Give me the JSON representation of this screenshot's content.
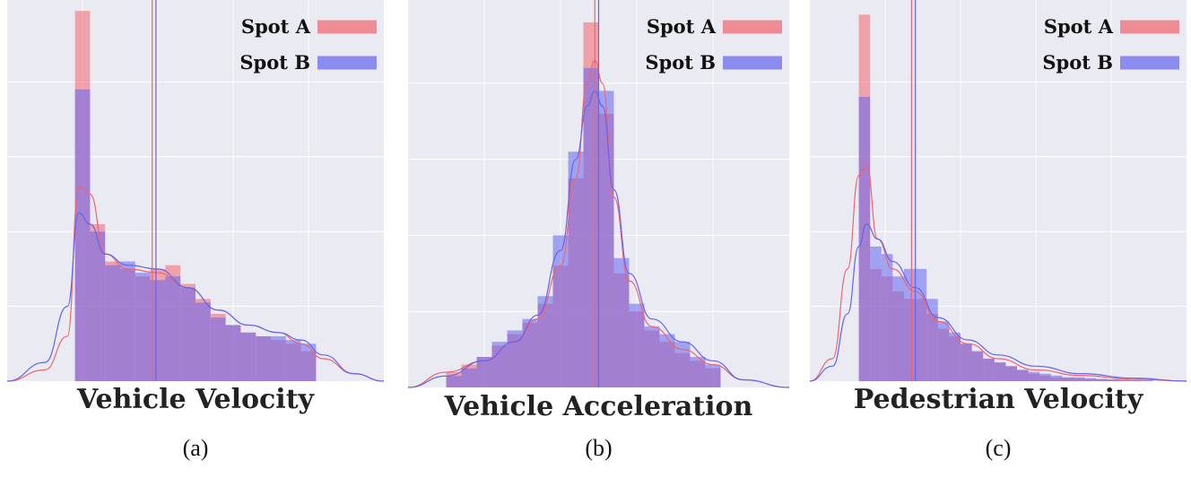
{
  "colors": {
    "spot_a": "#f0646e",
    "spot_b": "#6464f0",
    "background": "#eaeaf2",
    "grid": "#ffffff"
  },
  "panels": [
    {
      "title": "Vehicle Velocity",
      "sublabel": "(a)"
    },
    {
      "title": "Vehicle Acceleration",
      "sublabel": "(b)"
    },
    {
      "title": "Pedestrian Velocity",
      "sublabel": "(c)"
    }
  ],
  "chart_data": [
    {
      "type": "bar",
      "title": "Vehicle Velocity",
      "xlabel": "",
      "ylabel": "",
      "xlim": [
        0,
        1
      ],
      "ylim": [
        0,
        1
      ],
      "grid": true,
      "legend": "top-right",
      "overlay_density": true,
      "series": [
        {
          "name": "Spot A",
          "bin_edges": [
            0.18,
            0.22,
            0.26,
            0.3,
            0.34,
            0.38,
            0.42,
            0.46,
            0.5,
            0.54,
            0.58,
            0.62,
            0.66,
            0.7,
            0.74,
            0.78,
            0.82
          ],
          "values": [
            0.99,
            0.42,
            0.32,
            0.3,
            0.28,
            0.3,
            0.31,
            0.26,
            0.22,
            0.18,
            0.15,
            0.13,
            0.12,
            0.11,
            0.1,
            0.08
          ],
          "mean_marker": 0.385,
          "density_x": [
            0.0,
            0.1,
            0.16,
            0.19,
            0.22,
            0.26,
            0.32,
            0.4,
            0.48,
            0.56,
            0.64,
            0.72,
            0.78,
            0.84,
            0.92,
            1.0
          ],
          "density_y": [
            0.0,
            0.03,
            0.12,
            0.52,
            0.5,
            0.34,
            0.3,
            0.29,
            0.25,
            0.19,
            0.15,
            0.13,
            0.1,
            0.06,
            0.02,
            0.0
          ]
        },
        {
          "name": "Spot B",
          "bin_edges": [
            0.18,
            0.22,
            0.26,
            0.3,
            0.34,
            0.38,
            0.42,
            0.46,
            0.5,
            0.54,
            0.58,
            0.62,
            0.66,
            0.7,
            0.74,
            0.78,
            0.82
          ],
          "values": [
            0.78,
            0.4,
            0.31,
            0.32,
            0.29,
            0.27,
            0.28,
            0.25,
            0.21,
            0.17,
            0.15,
            0.13,
            0.12,
            0.12,
            0.11,
            0.1
          ],
          "mean_marker": 0.395,
          "density_x": [
            0.0,
            0.1,
            0.16,
            0.19,
            0.22,
            0.26,
            0.32,
            0.4,
            0.48,
            0.56,
            0.64,
            0.72,
            0.78,
            0.84,
            0.92,
            1.0
          ],
          "density_y": [
            0.0,
            0.05,
            0.2,
            0.45,
            0.42,
            0.34,
            0.31,
            0.3,
            0.25,
            0.19,
            0.15,
            0.13,
            0.11,
            0.07,
            0.02,
            0.0
          ]
        }
      ]
    },
    {
      "type": "bar",
      "title": "Vehicle Acceleration",
      "xlabel": "",
      "ylabel": "",
      "xlim": [
        0,
        1
      ],
      "ylim": [
        0,
        1
      ],
      "grid": true,
      "legend": "top-right",
      "overlay_density": true,
      "series": [
        {
          "name": "Spot A",
          "bin_edges": [
            0.1,
            0.14,
            0.18,
            0.22,
            0.26,
            0.3,
            0.34,
            0.38,
            0.42,
            0.46,
            0.5,
            0.54,
            0.58,
            0.62,
            0.66,
            0.7,
            0.74,
            0.78,
            0.82
          ],
          "values": [
            0.04,
            0.06,
            0.08,
            0.11,
            0.14,
            0.17,
            0.22,
            0.32,
            0.55,
            0.96,
            0.72,
            0.3,
            0.2,
            0.15,
            0.12,
            0.09,
            0.07,
            0.05
          ],
          "mean_marker": 0.49,
          "density_x": [
            0.0,
            0.1,
            0.2,
            0.28,
            0.34,
            0.4,
            0.44,
            0.47,
            0.49,
            0.51,
            0.54,
            0.58,
            0.64,
            0.72,
            0.8,
            0.88,
            1.0
          ],
          "density_y": [
            0.0,
            0.04,
            0.07,
            0.12,
            0.18,
            0.32,
            0.55,
            0.8,
            0.86,
            0.8,
            0.5,
            0.28,
            0.16,
            0.1,
            0.06,
            0.02,
            0.0
          ]
        },
        {
          "name": "Spot B",
          "bin_edges": [
            0.1,
            0.14,
            0.18,
            0.22,
            0.26,
            0.3,
            0.34,
            0.38,
            0.42,
            0.46,
            0.5,
            0.54,
            0.58,
            0.62,
            0.66,
            0.7,
            0.74,
            0.78,
            0.82
          ],
          "values": [
            0.03,
            0.05,
            0.08,
            0.12,
            0.15,
            0.18,
            0.24,
            0.4,
            0.62,
            0.84,
            0.78,
            0.34,
            0.22,
            0.16,
            0.14,
            0.12,
            0.08,
            0.06
          ],
          "mean_marker": 0.5,
          "density_x": [
            0.0,
            0.1,
            0.2,
            0.28,
            0.34,
            0.4,
            0.44,
            0.47,
            0.49,
            0.51,
            0.54,
            0.58,
            0.64,
            0.72,
            0.8,
            0.88,
            1.0
          ],
          "density_y": [
            0.0,
            0.03,
            0.07,
            0.12,
            0.19,
            0.36,
            0.6,
            0.74,
            0.78,
            0.74,
            0.52,
            0.3,
            0.18,
            0.12,
            0.07,
            0.02,
            0.0
          ]
        }
      ]
    },
    {
      "type": "bar",
      "title": "Pedestrian Velocity",
      "xlabel": "",
      "ylabel": "",
      "xlim": [
        0,
        1
      ],
      "ylim": [
        0,
        1
      ],
      "grid": true,
      "legend": "top-right",
      "overlay_density": true,
      "series": [
        {
          "name": "Spot A",
          "bin_edges": [
            0.13,
            0.16,
            0.19,
            0.22,
            0.25,
            0.28,
            0.31,
            0.34,
            0.37,
            0.4,
            0.43,
            0.46,
            0.49,
            0.52,
            0.55,
            0.58,
            0.61,
            0.64,
            0.67,
            0.7,
            0.73,
            0.76,
            0.79,
            0.82,
            0.85,
            0.88,
            0.91
          ],
          "values": [
            0.98,
            0.3,
            0.28,
            0.24,
            0.22,
            0.22,
            0.18,
            0.14,
            0.12,
            0.1,
            0.08,
            0.06,
            0.05,
            0.04,
            0.03,
            0.02,
            0.015,
            0.01,
            0.01,
            0.008,
            0.006,
            0.005,
            0.004,
            0.003,
            0.002,
            0.002
          ],
          "mean_marker": 0.27,
          "density_x": [
            0.0,
            0.06,
            0.1,
            0.13,
            0.15,
            0.18,
            0.22,
            0.28,
            0.34,
            0.42,
            0.5,
            0.6,
            0.72,
            0.86,
            1.0
          ],
          "density_y": [
            0.0,
            0.06,
            0.3,
            0.55,
            0.58,
            0.38,
            0.3,
            0.24,
            0.16,
            0.1,
            0.06,
            0.03,
            0.015,
            0.005,
            0.0
          ]
        },
        {
          "name": "Spot B",
          "bin_edges": [
            0.13,
            0.16,
            0.19,
            0.22,
            0.25,
            0.28,
            0.31,
            0.34,
            0.37,
            0.4,
            0.43,
            0.46,
            0.49,
            0.52,
            0.55,
            0.58,
            0.61,
            0.64,
            0.67,
            0.7,
            0.73,
            0.76,
            0.79,
            0.82,
            0.85,
            0.88,
            0.91
          ],
          "values": [
            0.76,
            0.36,
            0.34,
            0.28,
            0.3,
            0.3,
            0.22,
            0.16,
            0.13,
            0.1,
            0.08,
            0.06,
            0.05,
            0.04,
            0.03,
            0.025,
            0.02,
            0.015,
            0.01,
            0.01,
            0.008,
            0.006,
            0.005,
            0.004,
            0.003,
            0.002
          ],
          "mean_marker": 0.28,
          "density_x": [
            0.0,
            0.06,
            0.1,
            0.13,
            0.15,
            0.18,
            0.22,
            0.28,
            0.34,
            0.42,
            0.5,
            0.6,
            0.72,
            0.86,
            1.0
          ],
          "density_y": [
            0.0,
            0.04,
            0.18,
            0.36,
            0.42,
            0.38,
            0.32,
            0.25,
            0.17,
            0.11,
            0.07,
            0.04,
            0.02,
            0.008,
            0.0
          ]
        }
      ]
    }
  ]
}
